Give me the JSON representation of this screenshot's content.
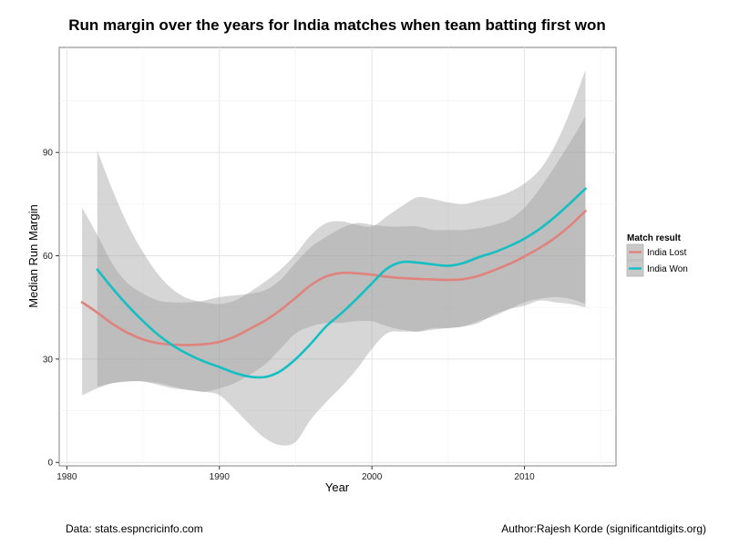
{
  "chart_data": {
    "type": "line",
    "title": "Run margin over the years for India matches when team batting first won",
    "xlabel": "Year",
    "ylabel": "Median Run Margin",
    "xlim": [
      1979.5,
      2016
    ],
    "ylim": [
      -1,
      120.5
    ],
    "xticks": [
      1980,
      1990,
      2000,
      2010
    ],
    "yticks": [
      0,
      30,
      60,
      90
    ],
    "grid": true,
    "legend": {
      "title": "Match result",
      "position": "right"
    },
    "series": [
      {
        "name": "India Lost",
        "color": "#e0837c",
        "x": [
          1981,
          1982,
          1983,
          1984,
          1985,
          1986,
          1987,
          1988,
          1989,
          1990,
          1991,
          1992,
          1993,
          1994,
          1995,
          1996,
          1997,
          1998,
          1999,
          2000,
          2001,
          2002,
          2003,
          2004,
          2005,
          2006,
          2007,
          2008,
          2009,
          2010,
          2011,
          2012,
          2013,
          2014
        ],
        "y": [
          46.5,
          43.5,
          40.2,
          37.6,
          35.7,
          34.6,
          34.2,
          34.1,
          34.3,
          35.0,
          36.5,
          38.8,
          41.2,
          44.2,
          47.8,
          51.5,
          54.0,
          55.0,
          54.9,
          54.5,
          53.9,
          53.5,
          53.3,
          53.1,
          53.0,
          53.2,
          54.2,
          55.8,
          57.6,
          59.8,
          62.3,
          65.2,
          68.8,
          73.0
        ],
        "ci_lower": [
          19.5,
          21.5,
          23,
          23.5,
          23.5,
          22.5,
          21.5,
          21,
          20.5,
          21.5,
          23,
          25.5,
          28.5,
          33,
          37.5,
          39.5,
          40.5,
          40.5,
          41,
          41,
          39.5,
          38.5,
          38,
          38.5,
          39,
          39.5,
          41,
          42.5,
          44.5,
          46.5,
          47.5,
          48,
          47.5,
          46
        ],
        "ci_upper": [
          74,
          66,
          57.5,
          52,
          49,
          47,
          46.5,
          46.5,
          47,
          48,
          48.5,
          49,
          50,
          53,
          58,
          62.5,
          65.5,
          68,
          69.5,
          69,
          68.5,
          68.5,
          68.5,
          67.5,
          67.5,
          67.5,
          68,
          69,
          70.5,
          74,
          79.5,
          86,
          93,
          100.5
        ]
      },
      {
        "name": "India Won",
        "color": "#14bfc4",
        "x": [
          1982,
          1983,
          1984,
          1985,
          1986,
          1987,
          1988,
          1989,
          1990,
          1991,
          1992,
          1993,
          1994,
          1995,
          1996,
          1997,
          1998,
          1999,
          2000,
          2001,
          2002,
          2003,
          2004,
          2005,
          2006,
          2007,
          2008,
          2009,
          2010,
          2011,
          2012,
          2013,
          2014
        ],
        "y": [
          56.0,
          50.5,
          45.5,
          41.0,
          37.0,
          33.8,
          31.3,
          29.3,
          27.7,
          26.0,
          24.9,
          24.8,
          26.5,
          30.0,
          34.5,
          39.5,
          43.3,
          47.5,
          52.0,
          56.3,
          58.2,
          58.0,
          57.5,
          57.1,
          57.9,
          59.6,
          61.0,
          62.8,
          65.0,
          67.8,
          71.3,
          75.3,
          79.5
        ],
        "ci_lower": [
          22,
          23,
          23.5,
          23.5,
          23,
          22,
          21,
          20.5,
          19.5,
          15.5,
          11,
          7,
          5,
          6,
          12.5,
          17.5,
          22,
          27,
          33,
          37.5,
          38,
          38,
          39,
          39,
          39.5,
          40.5,
          43,
          44.5,
          45.5,
          47,
          46.5,
          46,
          45
        ],
        "ci_upper": [
          90.5,
          79,
          69,
          61,
          54.5,
          50,
          47.5,
          46.5,
          46,
          47,
          49.5,
          52.5,
          56,
          60.5,
          66,
          69.5,
          70,
          69,
          68.5,
          71.5,
          74.5,
          77,
          76.5,
          75.5,
          75,
          76,
          77,
          78.5,
          81,
          85,
          92,
          102,
          114
        ]
      }
    ]
  },
  "footer": {
    "left": "Data: stats.espncricinfo.com",
    "right": "Author:Rajesh Korde (significantdigits.org)"
  }
}
